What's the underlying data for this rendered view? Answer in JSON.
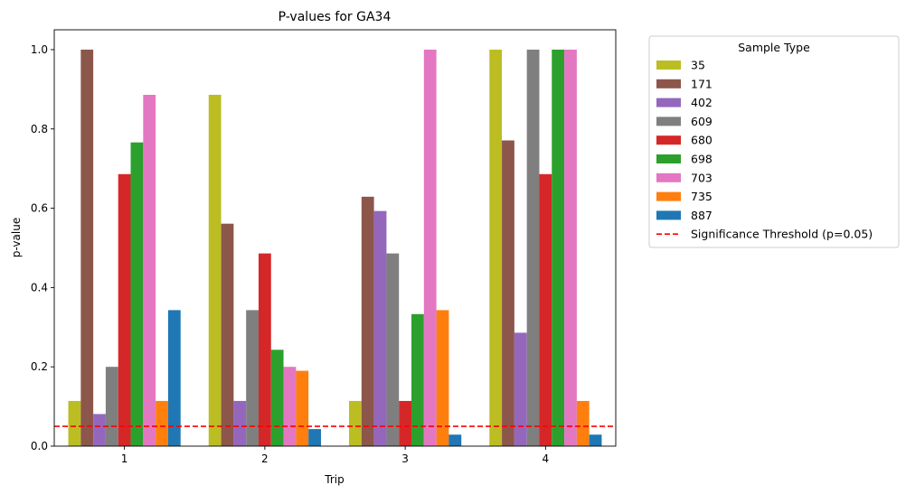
{
  "chart_data": {
    "type": "bar",
    "title": "P-values for GA34",
    "xlabel": "Trip",
    "ylabel": "p-value",
    "categories": [
      "1",
      "2",
      "3",
      "4"
    ],
    "ylim": [
      0.0,
      1.05
    ],
    "yticks": [
      "0.0",
      "0.2",
      "0.4",
      "0.6",
      "0.8",
      "1.0"
    ],
    "ytick_values": [
      0.0,
      0.2,
      0.4,
      0.6,
      0.8,
      1.0
    ],
    "grid": false,
    "legend": {
      "title": "Sample Type",
      "placement": "outside-upper-right",
      "threshold_label": "Significance Threshold (p=0.05)"
    },
    "series": [
      {
        "name": "35",
        "color": "#bcbd22",
        "values": [
          0.114,
          0.886,
          0.114,
          1.0
        ]
      },
      {
        "name": "171",
        "color": "#8c564b",
        "values": [
          1.0,
          0.561,
          0.629,
          0.771
        ]
      },
      {
        "name": "402",
        "color": "#9467bd",
        "values": [
          0.081,
          0.114,
          0.593,
          0.286
        ]
      },
      {
        "name": "609",
        "color": "#7f7f7f",
        "values": [
          0.2,
          0.343,
          0.486,
          1.0
        ]
      },
      {
        "name": "680",
        "color": "#d62728",
        "values": [
          0.686,
          0.486,
          0.114,
          0.686
        ]
      },
      {
        "name": "698",
        "color": "#2ca02c",
        "values": [
          0.766,
          0.243,
          0.333,
          1.0
        ]
      },
      {
        "name": "703",
        "color": "#e377c2",
        "values": [
          0.886,
          0.2,
          1.0,
          1.0
        ]
      },
      {
        "name": "735",
        "color": "#ff7f0e",
        "values": [
          0.114,
          0.19,
          0.343,
          0.114
        ]
      },
      {
        "name": "887",
        "color": "#1f77b4",
        "values": [
          0.343,
          0.043,
          0.029,
          0.029
        ]
      }
    ],
    "threshold": {
      "value": 0.05,
      "color": "#ff0000"
    }
  }
}
